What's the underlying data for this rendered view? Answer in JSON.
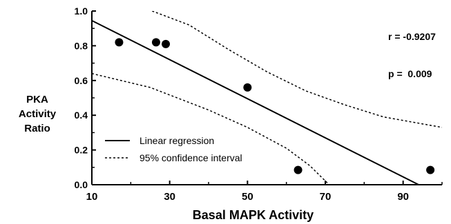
{
  "chart_data": {
    "type": "scatter",
    "xlabel": "Basal MAPK Activity",
    "ylabel_lines": [
      "PKA",
      "Activity",
      "Ratio"
    ],
    "xlim": [
      10,
      100
    ],
    "ylim": [
      0,
      1.0
    ],
    "x_ticks": [
      10,
      30,
      50,
      70,
      90
    ],
    "y_ticks": [
      "0.0",
      "0.2",
      "0.4",
      "0.6",
      "0.8",
      "1.0"
    ],
    "grid": false,
    "points": [
      {
        "x": 17,
        "y": 0.82
      },
      {
        "x": 26.5,
        "y": 0.82
      },
      {
        "x": 29,
        "y": 0.81
      },
      {
        "x": 50,
        "y": 0.56
      },
      {
        "x": 63,
        "y": 0.085
      },
      {
        "x": 97,
        "y": 0.085
      }
    ],
    "regression": {
      "label": "Linear regression",
      "x": [
        10,
        94
      ],
      "y": [
        0.945,
        0.0
      ]
    },
    "confidence_interval": {
      "label": "95% confidence interval",
      "upper": {
        "x": [
          25.5,
          35,
          45,
          55,
          65,
          75,
          85,
          100
        ],
        "y": [
          1.0,
          0.92,
          0.78,
          0.65,
          0.54,
          0.46,
          0.39,
          0.33
        ]
      },
      "lower": {
        "x": [
          10,
          25,
          40,
          50,
          60,
          66,
          71
        ],
        "y": [
          0.64,
          0.56,
          0.43,
          0.33,
          0.21,
          0.11,
          0.0
        ]
      }
    },
    "annotations": [
      "r = -0.9207",
      "p =  0.009"
    ],
    "legend_position": "bottom-left"
  }
}
